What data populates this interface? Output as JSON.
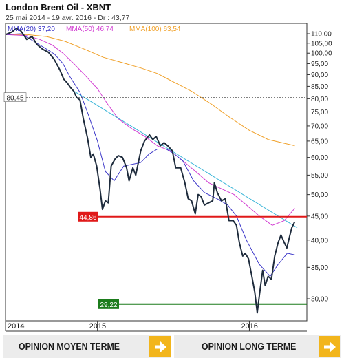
{
  "header": {
    "title": "London Brent Oil - XBNT",
    "subtitle": "25 mai 2014 - 19 avr. 2016 - Dr : 43,77"
  },
  "chart_data": {
    "type": "line",
    "title": "London Brent Oil - XBNT",
    "y_scale": "log",
    "ylim": [
      27.5,
      112
    ],
    "y_ticks": [
      30,
      35,
      40,
      45,
      50,
      55,
      60,
      65,
      70,
      75,
      80,
      85,
      90,
      95,
      100,
      105,
      110
    ],
    "y_tick_labels": [
      "30,00",
      "35,00",
      "40,00",
      "45,00",
      "50,00",
      "55,00",
      "60,00",
      "65,00",
      "70,00",
      "75,00",
      "80,00",
      "85,00",
      "90,00",
      "95,00",
      "100,00",
      "105,00",
      "110,00"
    ],
    "x_range": [
      "2014-05-25",
      "2016-04-19"
    ],
    "x_ticks": [
      {
        "date": "2014-05-25",
        "label": "2014"
      },
      {
        "date": "2015-01-01",
        "label": "2015"
      },
      {
        "date": "2016-01-01",
        "label": "2016"
      }
    ],
    "grid": false,
    "legend": [
      {
        "label": "MMA(20)",
        "value": "37,20",
        "color": "#3a35c8"
      },
      {
        "label": "MMA(50)",
        "value": "46,74",
        "color": "#d23cd2"
      },
      {
        "label": "MMA(100)",
        "value": "63,54",
        "color": "#f0a028"
      }
    ],
    "series": [
      {
        "name": "price",
        "color": "#1e2b3c",
        "points": [
          [
            "2014-05-25",
            109.5
          ],
          [
            "2014-06-10",
            111
          ],
          [
            "2014-06-20",
            113
          ],
          [
            "2014-07-01",
            111.5
          ],
          [
            "2014-07-15",
            107
          ],
          [
            "2014-07-28",
            108.5
          ],
          [
            "2014-08-08",
            104.5
          ],
          [
            "2014-08-22",
            102
          ],
          [
            "2014-09-05",
            100.5
          ],
          [
            "2014-09-19",
            97
          ],
          [
            "2014-10-03",
            92
          ],
          [
            "2014-10-12",
            88
          ],
          [
            "2014-10-20",
            86.5
          ],
          [
            "2014-10-28",
            84.5
          ],
          [
            "2014-11-05",
            83
          ],
          [
            "2014-11-12",
            80.5
          ],
          [
            "2014-11-20",
            79.5
          ],
          [
            "2014-11-28",
            72.5
          ],
          [
            "2014-12-08",
            66
          ],
          [
            "2014-12-16",
            60
          ],
          [
            "2014-12-22",
            61
          ],
          [
            "2014-12-30",
            57.5
          ],
          [
            "2015-01-07",
            51.5
          ],
          [
            "2015-01-13",
            46.5
          ],
          [
            "2015-01-20",
            48.5
          ],
          [
            "2015-01-27",
            48
          ],
          [
            "2015-02-03",
            57.5
          ],
          [
            "2015-02-12",
            59.5
          ],
          [
            "2015-02-20",
            60.5
          ],
          [
            "2015-03-02",
            60
          ],
          [
            "2015-03-12",
            57
          ],
          [
            "2015-03-18",
            53.5
          ],
          [
            "2015-03-27",
            57
          ],
          [
            "2015-04-03",
            55
          ],
          [
            "2015-04-15",
            62
          ],
          [
            "2015-04-24",
            65
          ],
          [
            "2015-05-06",
            67
          ],
          [
            "2015-05-14",
            65.5
          ],
          [
            "2015-05-22",
            66.5
          ],
          [
            "2015-06-01",
            63.5
          ],
          [
            "2015-06-10",
            64.5
          ],
          [
            "2015-06-19",
            63.5
          ],
          [
            "2015-06-30",
            62
          ],
          [
            "2015-07-08",
            57
          ],
          [
            "2015-07-20",
            57
          ],
          [
            "2015-07-30",
            53
          ],
          [
            "2015-08-07",
            49
          ],
          [
            "2015-08-15",
            48.5
          ],
          [
            "2015-08-24",
            45.5
          ],
          [
            "2015-08-31",
            50
          ],
          [
            "2015-09-07",
            49.5
          ],
          [
            "2015-09-15",
            47.5
          ],
          [
            "2015-09-25",
            48
          ],
          [
            "2015-10-05",
            48.5
          ],
          [
            "2015-10-09",
            53
          ],
          [
            "2015-10-16",
            50.5
          ],
          [
            "2015-10-26",
            48.5
          ],
          [
            "2015-11-04",
            49
          ],
          [
            "2015-11-13",
            44
          ],
          [
            "2015-11-23",
            44
          ],
          [
            "2015-12-01",
            43
          ],
          [
            "2015-12-08",
            39.5
          ],
          [
            "2015-12-16",
            37
          ],
          [
            "2015-12-22",
            37.5
          ],
          [
            "2015-12-30",
            36.5
          ],
          [
            "2016-01-07",
            33.5
          ],
          [
            "2016-01-14",
            31
          ],
          [
            "2016-01-20",
            28
          ],
          [
            "2016-01-25",
            30.5
          ],
          [
            "2016-02-02",
            34.5
          ],
          [
            "2016-02-08",
            32
          ],
          [
            "2016-02-15",
            33.5
          ],
          [
            "2016-02-23",
            33
          ],
          [
            "2016-03-02",
            37
          ],
          [
            "2016-03-10",
            39.5
          ],
          [
            "2016-03-17",
            41
          ],
          [
            "2016-03-25",
            39.5
          ],
          [
            "2016-03-31",
            38.5
          ],
          [
            "2016-04-06",
            40.5
          ],
          [
            "2016-04-12",
            42.5
          ],
          [
            "2016-04-19",
            43.77
          ]
        ]
      },
      {
        "name": "MMA(20)",
        "color": "#3a35c8",
        "points": [
          [
            "2014-05-25",
            109.5
          ],
          [
            "2014-07-01",
            110
          ],
          [
            "2014-08-01",
            106
          ],
          [
            "2014-09-01",
            102
          ],
          [
            "2014-09-20",
            99.5
          ],
          [
            "2014-10-10",
            95
          ],
          [
            "2014-10-27",
            89
          ],
          [
            "2014-11-20",
            82.5
          ],
          [
            "2014-12-10",
            74
          ],
          [
            "2015-01-01",
            65
          ],
          [
            "2015-01-20",
            56
          ],
          [
            "2015-02-10",
            53.5
          ],
          [
            "2015-03-05",
            57.5
          ],
          [
            "2015-03-25",
            58
          ],
          [
            "2015-04-15",
            58.5
          ],
          [
            "2015-05-05",
            61
          ],
          [
            "2015-05-25",
            62.5
          ],
          [
            "2015-06-15",
            62.5
          ],
          [
            "2015-07-05",
            61
          ],
          [
            "2015-07-25",
            59
          ],
          [
            "2015-08-20",
            53.5
          ],
          [
            "2015-09-15",
            50.5
          ],
          [
            "2015-10-15",
            49
          ],
          [
            "2015-11-10",
            47.5
          ],
          [
            "2015-12-01",
            45
          ],
          [
            "2015-12-25",
            40
          ],
          [
            "2016-01-25",
            35.5
          ],
          [
            "2016-02-20",
            33.5
          ],
          [
            "2016-03-10",
            35.5
          ],
          [
            "2016-04-01",
            37.5
          ],
          [
            "2016-04-19",
            37.2
          ]
        ]
      },
      {
        "name": "MMA(50)",
        "color": "#d23cd2",
        "points": [
          [
            "2014-05-25",
            109.5
          ],
          [
            "2014-07-15",
            109
          ],
          [
            "2014-08-15",
            107
          ],
          [
            "2014-09-15",
            104
          ],
          [
            "2014-10-10",
            100
          ],
          [
            "2014-11-05",
            95
          ],
          [
            "2014-12-01",
            90
          ],
          [
            "2015-01-01",
            84
          ],
          [
            "2015-01-25",
            78
          ],
          [
            "2015-02-20",
            72.5
          ],
          [
            "2015-03-25",
            69
          ],
          [
            "2015-04-25",
            66.5
          ],
          [
            "2015-05-25",
            63.5
          ],
          [
            "2015-06-25",
            62
          ],
          [
            "2015-07-25",
            59
          ],
          [
            "2015-08-25",
            56
          ],
          [
            "2015-09-25",
            53
          ],
          [
            "2015-10-25",
            51.5
          ],
          [
            "2015-11-25",
            50
          ],
          [
            "2015-12-25",
            47.5
          ],
          [
            "2016-01-25",
            45
          ],
          [
            "2016-02-25",
            43
          ],
          [
            "2016-03-25",
            44
          ],
          [
            "2016-04-19",
            46.74
          ]
        ]
      },
      {
        "name": "MMA(100)",
        "color": "#f0a028",
        "points": [
          [
            "2014-05-25",
            109.5
          ],
          [
            "2014-07-15",
            109.5
          ],
          [
            "2014-09-01",
            108.5
          ],
          [
            "2014-10-15",
            106
          ],
          [
            "2014-12-01",
            102
          ],
          [
            "2015-01-15",
            98
          ],
          [
            "2015-03-01",
            95.5
          ],
          [
            "2015-04-15",
            93
          ],
          [
            "2015-05-25",
            90.5
          ],
          [
            "2015-07-01",
            87
          ],
          [
            "2015-08-15",
            83
          ],
          [
            "2015-10-01",
            78
          ],
          [
            "2015-11-15",
            73
          ],
          [
            "2016-01-01",
            68.5
          ],
          [
            "2016-02-15",
            65.5
          ],
          [
            "2016-04-19",
            63.54
          ]
        ]
      }
    ],
    "trendline": {
      "color": "#39b5d8",
      "from": [
        "2014-11-01",
        83.5
      ],
      "to": [
        "2016-04-25",
        42.5
      ]
    },
    "horizontal_lines": [
      {
        "value": 80.45,
        "label": "80,45",
        "style": "dotted",
        "color": "#555555",
        "label_side": "left"
      },
      {
        "value": 44.86,
        "label": "44,86",
        "style": "solid",
        "color": "#e01919",
        "label_side": "left"
      },
      {
        "value": 29.22,
        "label": "29,22",
        "style": "solid",
        "color": "#1c7c1c",
        "label_side": "left"
      }
    ]
  },
  "buttons": [
    {
      "label": "OPINION MOYEN TERME",
      "icon": "arrow-right-icon"
    },
    {
      "label": "OPINION LONG TERME",
      "icon": "arrow-right-icon"
    }
  ]
}
